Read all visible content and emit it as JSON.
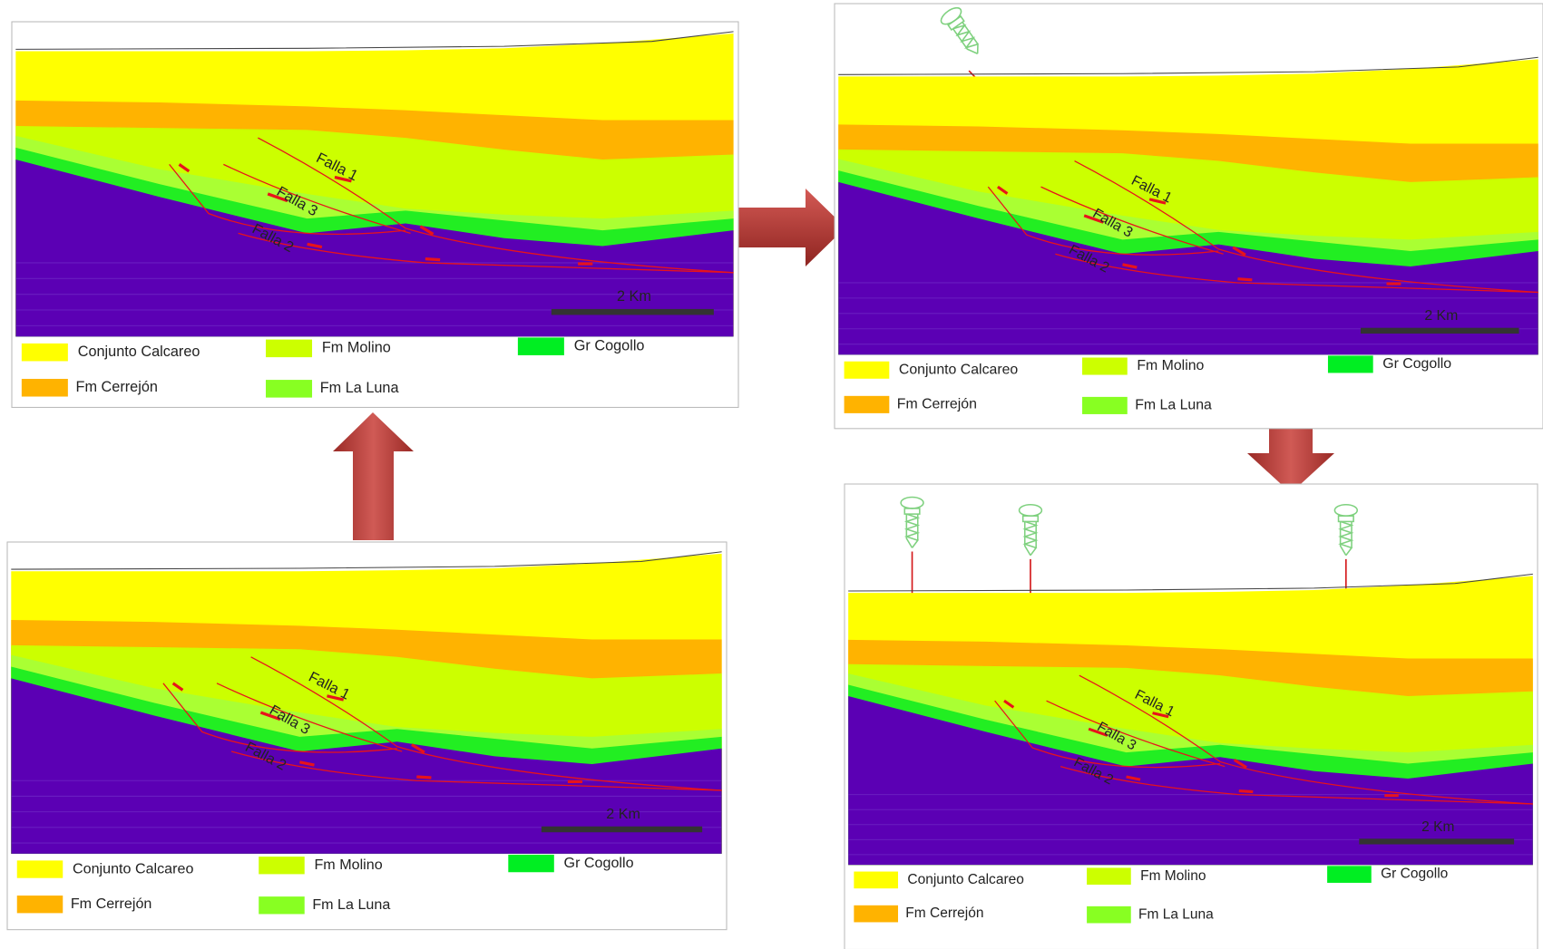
{
  "panels": [
    {
      "fault_labels": [
        "Falla 1",
        "Falla 3",
        "Falla 2"
      ],
      "scale_label": "2 Km",
      "legend": [
        "Conjunto Calcareo",
        "Fm Cerrejón",
        "Fm Molino",
        "Fm La Luna",
        "Gr Cogollo"
      ]
    },
    {
      "fault_labels": [
        "Falla 1",
        "Falla 3",
        "Falla 2"
      ],
      "scale_label": "2 Km",
      "legend": [
        "Conjunto Calcareo",
        "Fm Cerrejón",
        "Fm Molino",
        "Fm La Luna",
        "Gr Cogollo"
      ]
    },
    {
      "fault_labels": [
        "Falla 1",
        "Falla 3",
        "Falla 2"
      ],
      "scale_label": "2 Km",
      "legend": [
        "Conjunto Calcareo",
        "Fm Cerrejón",
        "Fm Molino",
        "Fm La Luna",
        "Gr Cogollo"
      ]
    },
    {
      "fault_labels": [
        "Falla 1",
        "Falla 3",
        "Falla 2"
      ],
      "scale_label": "2 Km",
      "legend": [
        "Conjunto Calcareo",
        "Fm Cerrejón",
        "Fm Molino",
        "Fm La Luna",
        "Gr Cogollo"
      ]
    }
  ]
}
